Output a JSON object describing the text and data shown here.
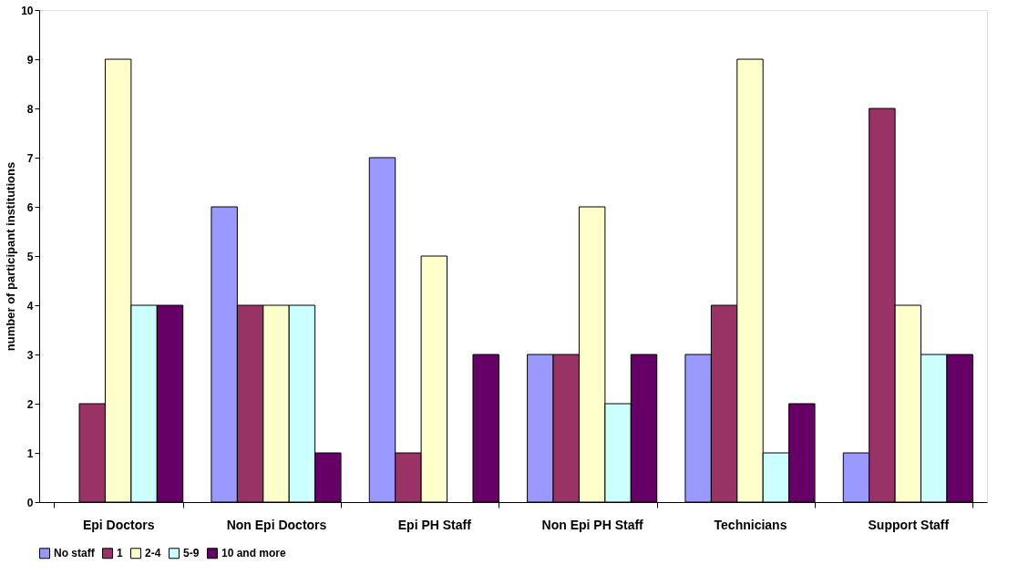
{
  "chart_data": {
    "type": "bar",
    "ylabel": "number of participant institutions",
    "categories": [
      "Epi Doctors",
      "Non Epi Doctors",
      "Epi PH Staff",
      "Non Epi PH Staff",
      "Technicians",
      "Support Staff"
    ],
    "series": [
      {
        "name": "No staff",
        "color": "#9999ff",
        "values": [
          0,
          6,
          7,
          3,
          3,
          1
        ]
      },
      {
        "name": "1",
        "color": "#993366",
        "values": [
          2,
          4,
          1,
          3,
          4,
          8
        ]
      },
      {
        "name": "2-4",
        "color": "#ffffcc",
        "values": [
          9,
          4,
          5,
          6,
          9,
          4
        ]
      },
      {
        "name": "5-9",
        "color": "#ccffff",
        "values": [
          4,
          4,
          0,
          2,
          1,
          3
        ]
      },
      {
        "name": "10 and more",
        "color": "#660066",
        "values": [
          4,
          1,
          3,
          3,
          2,
          3
        ]
      }
    ],
    "ylim": [
      0,
      10
    ],
    "yticks": [
      0,
      1,
      2,
      3,
      4,
      5,
      6,
      7,
      8,
      9,
      10
    ],
    "grid": false,
    "legend": "bottom"
  }
}
